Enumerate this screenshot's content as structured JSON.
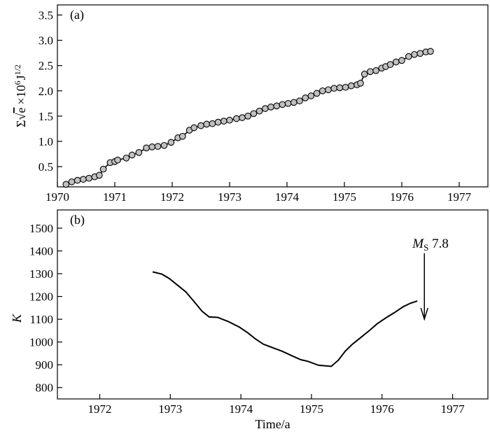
{
  "chart_data": [
    {
      "type": "line",
      "panel_label": "(a)",
      "ylabel_parts": {
        "sum": "Σ",
        "sqrt": "√",
        "e": "e",
        "times": "×10",
        "exp1": "6",
        "unit": "J",
        "exp2": "1/2"
      },
      "xlabel": "",
      "xlim": [
        1970,
        1977.5
      ],
      "ylim": [
        0.1,
        3.7
      ],
      "xticks": [
        1970,
        1971,
        1972,
        1973,
        1974,
        1975,
        1976,
        1977
      ],
      "yticks": [
        0.5,
        1.0,
        1.5,
        2.0,
        2.5,
        3.0,
        3.5
      ],
      "ytick_labels": [
        "0.5",
        "1.0",
        "1.5",
        "2.0",
        "2.5",
        "3.0",
        "3.5"
      ],
      "marker": "circle",
      "marker_fill": "#c0c0c0",
      "line_color": "#000000",
      "series": [
        {
          "x": [
            1970.15,
            1970.25,
            1970.35,
            1970.45,
            1970.55,
            1970.65,
            1970.73,
            1970.8,
            1970.92,
            1971.0,
            1971.05,
            1971.2,
            1971.3,
            1971.42,
            1971.55,
            1971.65,
            1971.75,
            1971.86,
            1971.98,
            1972.1,
            1972.18,
            1972.3,
            1972.38,
            1972.5,
            1972.6,
            1972.7,
            1972.8,
            1972.9,
            1973.0,
            1973.12,
            1973.22,
            1973.32,
            1973.42,
            1973.52,
            1973.62,
            1973.72,
            1973.82,
            1973.92,
            1974.02,
            1974.12,
            1974.22,
            1974.32,
            1974.42,
            1974.52,
            1974.62,
            1974.72,
            1974.82,
            1974.92,
            1975.02,
            1975.12,
            1975.22,
            1975.28,
            1975.35,
            1975.45,
            1975.55,
            1975.65,
            1975.72,
            1975.8,
            1975.9,
            1976.0,
            1976.12,
            1976.22,
            1976.32,
            1976.42,
            1976.5
          ],
          "y": [
            0.15,
            0.2,
            0.23,
            0.25,
            0.27,
            0.3,
            0.33,
            0.45,
            0.58,
            0.6,
            0.63,
            0.67,
            0.73,
            0.78,
            0.87,
            0.89,
            0.9,
            0.92,
            0.98,
            1.07,
            1.1,
            1.22,
            1.27,
            1.31,
            1.34,
            1.35,
            1.38,
            1.4,
            1.42,
            1.45,
            1.47,
            1.5,
            1.55,
            1.6,
            1.65,
            1.68,
            1.7,
            1.73,
            1.75,
            1.77,
            1.8,
            1.86,
            1.9,
            1.95,
            2.0,
            2.02,
            2.05,
            2.06,
            2.07,
            2.1,
            2.12,
            2.15,
            2.33,
            2.38,
            2.4,
            2.45,
            2.48,
            2.52,
            2.57,
            2.6,
            2.68,
            2.72,
            2.74,
            2.77,
            2.78
          ]
        }
      ]
    },
    {
      "type": "line",
      "panel_label": "(b)",
      "ylabel": "K",
      "xlabel": "Time/a",
      "xlim": [
        1971.4,
        1977.5
      ],
      "ylim": [
        750,
        1580
      ],
      "xticks": [
        1972,
        1973,
        1974,
        1975,
        1976,
        1977
      ],
      "yticks": [
        800,
        900,
        1000,
        1100,
        1200,
        1300,
        1400,
        1500
      ],
      "line_color": "#000000",
      "series": [
        {
          "x": [
            1972.75,
            1972.88,
            1972.98,
            1973.1,
            1973.22,
            1973.33,
            1973.45,
            1973.55,
            1973.67,
            1973.82,
            1973.98,
            1974.1,
            1974.2,
            1974.32,
            1974.45,
            1974.58,
            1974.72,
            1974.85,
            1974.95,
            1975.1,
            1975.28,
            1975.38,
            1975.48,
            1975.58,
            1975.7,
            1975.82,
            1975.93,
            1976.05,
            1976.18,
            1976.3,
            1976.4,
            1976.5
          ],
          "y": [
            1308,
            1298,
            1280,
            1250,
            1220,
            1180,
            1135,
            1110,
            1108,
            1090,
            1065,
            1040,
            1015,
            990,
            975,
            960,
            940,
            922,
            915,
            898,
            893,
            920,
            960,
            990,
            1020,
            1050,
            1080,
            1105,
            1130,
            1155,
            1170,
            1180
          ]
        }
      ],
      "annotation": {
        "text_main": "M",
        "text_sub": "S",
        "text_mag": " 7.8",
        "x": 1976.6,
        "y_from": 1390,
        "y_to": 1100
      }
    }
  ]
}
